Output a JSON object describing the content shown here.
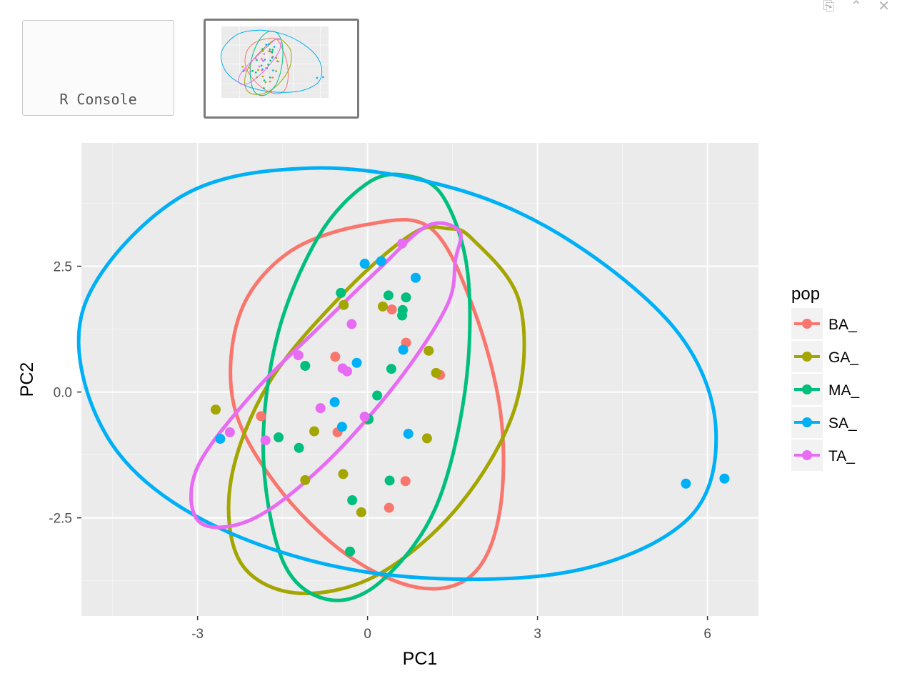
{
  "window": {
    "controls": [
      "⎘",
      "⌃",
      "✕"
    ]
  },
  "thumbnails": {
    "console_label": "R Console"
  },
  "chart_data": {
    "type": "scatter",
    "xlabel": "PC1",
    "ylabel": "PC2",
    "xlim": [
      -5.05,
      6.9
    ],
    "ylim": [
      -4.45,
      4.95
    ],
    "x_ticks": [
      -3,
      0,
      3,
      6
    ],
    "x_tick_labels": [
      "-3",
      "0",
      "3",
      "6"
    ],
    "y_ticks": [
      -2.5,
      0.0,
      2.5
    ],
    "y_tick_labels": [
      "-2.5",
      "0.0",
      "2.5"
    ],
    "grid": true,
    "legend": {
      "title": "pop",
      "placement": "right"
    },
    "series": [
      {
        "name": "BA_",
        "color": "#F8766D",
        "points": [
          [
            0.43,
            1.64
          ],
          [
            0.68,
            0.98
          ],
          [
            1.28,
            0.34
          ],
          [
            -0.57,
            0.7
          ],
          [
            -1.88,
            -0.48
          ],
          [
            -0.53,
            -0.8
          ],
          [
            0.0,
            -0.55
          ],
          [
            0.67,
            -1.77
          ],
          [
            0.38,
            -2.3
          ]
        ],
        "ellipse": [
          [
            1.12,
            3.25
          ],
          [
            1.87,
            1.66
          ],
          [
            2.35,
            -0.43
          ],
          [
            2.33,
            -2.4
          ],
          [
            1.86,
            -3.62
          ],
          [
            0.92,
            -3.89
          ],
          [
            -0.37,
            -3.23
          ],
          [
            -1.62,
            -1.83
          ],
          [
            -2.37,
            -0.2
          ],
          [
            -2.24,
            1.59
          ],
          [
            -1.37,
            2.79
          ],
          [
            0.0,
            3.33
          ]
        ]
      },
      {
        "name": "GA_",
        "color": "#A3A500",
        "points": [
          [
            -0.42,
            1.73
          ],
          [
            0.27,
            1.7
          ],
          [
            1.08,
            0.82
          ],
          [
            1.21,
            0.38
          ],
          [
            -2.68,
            -0.35
          ],
          [
            -0.94,
            -0.78
          ],
          [
            1.05,
            -0.92
          ],
          [
            -1.1,
            -1.75
          ],
          [
            -0.43,
            -1.63
          ],
          [
            -0.11,
            -2.39
          ]
        ],
        "ellipse": [
          [
            1.85,
            3.04
          ],
          [
            2.68,
            1.79
          ],
          [
            2.62,
            -0.25
          ],
          [
            1.62,
            -2.25
          ],
          [
            0.15,
            -3.65
          ],
          [
            -1.29,
            -3.99
          ],
          [
            -2.26,
            -3.35
          ],
          [
            -2.41,
            -1.75
          ],
          [
            -1.73,
            0.2
          ],
          [
            -0.39,
            2.0
          ],
          [
            0.8,
            3.15
          ],
          [
            1.4,
            3.25
          ]
        ]
      },
      {
        "name": "MA_",
        "color": "#00BF7D",
        "points": [
          [
            -0.47,
            1.97
          ],
          [
            0.37,
            1.92
          ],
          [
            0.68,
            1.88
          ],
          [
            0.62,
            1.63
          ],
          [
            0.61,
            1.52
          ],
          [
            -1.1,
            0.52
          ],
          [
            0.42,
            0.46
          ],
          [
            0.17,
            -0.07
          ],
          [
            0.02,
            -0.54
          ],
          [
            -1.57,
            -0.9
          ],
          [
            -1.21,
            -1.11
          ],
          [
            0.39,
            -1.76
          ],
          [
            -0.27,
            -2.15
          ],
          [
            -0.31,
            -3.17
          ]
        ],
        "ellipse": [
          [
            0.7,
            4.3
          ],
          [
            1.34,
            3.87
          ],
          [
            1.77,
            2.35
          ],
          [
            1.72,
            0.02
          ],
          [
            1.19,
            -2.33
          ],
          [
            0.21,
            -3.79
          ],
          [
            -0.71,
            -4.12
          ],
          [
            -1.49,
            -3.37
          ],
          [
            -1.84,
            -1.22
          ],
          [
            -1.59,
            1.12
          ],
          [
            -0.86,
            3.1
          ],
          [
            0.0,
            4.15
          ]
        ]
      },
      {
        "name": "SA_",
        "color": "#00B0F6",
        "points": [
          [
            -0.05,
            2.55
          ],
          [
            0.24,
            2.6
          ],
          [
            0.85,
            2.27
          ],
          [
            0.63,
            0.84
          ],
          [
            -0.19,
            0.58
          ],
          [
            -0.58,
            -0.2
          ],
          [
            -0.45,
            -0.69
          ],
          [
            0.72,
            -0.83
          ],
          [
            -2.6,
            -0.93
          ],
          [
            5.62,
            -1.82
          ],
          [
            6.3,
            -1.72
          ]
        ],
        "ellipse": [
          [
            -1.0,
            4.45
          ],
          [
            1.55,
            4.04
          ],
          [
            3.65,
            2.95
          ],
          [
            5.5,
            1.15
          ],
          [
            6.15,
            -0.77
          ],
          [
            5.63,
            -2.55
          ],
          [
            3.42,
            -3.6
          ],
          [
            0.0,
            -3.58
          ],
          [
            -2.89,
            -2.55
          ],
          [
            -4.62,
            -0.84
          ],
          [
            -5.02,
            1.64
          ],
          [
            -3.34,
            3.85
          ]
        ]
      },
      {
        "name": "TA_",
        "color": "#E76BF3",
        "points": [
          [
            0.61,
            2.95
          ],
          [
            -0.28,
            1.35
          ],
          [
            -1.22,
            0.73
          ],
          [
            -0.44,
            0.47
          ],
          [
            -0.36,
            0.41
          ],
          [
            -0.83,
            -0.32
          ],
          [
            -0.05,
            -0.49
          ],
          [
            -2.43,
            -0.8
          ],
          [
            -1.8,
            -0.96
          ]
        ],
        "ellipse": [
          [
            1.55,
            2.62
          ],
          [
            1.4,
            1.71
          ],
          [
            0.5,
            0.16
          ],
          [
            -0.8,
            -1.48
          ],
          [
            -2.04,
            -2.53
          ],
          [
            -2.97,
            -2.58
          ],
          [
            -3.02,
            -1.54
          ],
          [
            -2.06,
            -0.07
          ],
          [
            -0.89,
            1.25
          ],
          [
            0.19,
            2.43
          ],
          [
            1.05,
            3.3
          ],
          [
            1.62,
            3.2
          ]
        ]
      }
    ]
  }
}
